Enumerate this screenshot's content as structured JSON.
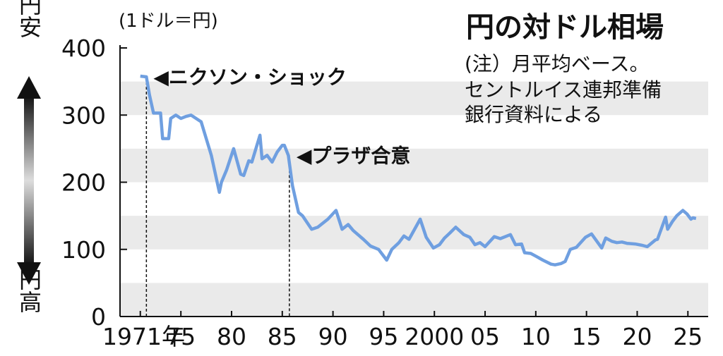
{
  "chart_data": {
    "type": "line",
    "title": "円の対ドル相場",
    "unit_label": "(1ドル＝円)",
    "notes": [
      "(注）月平均ベース。",
      "セントルイス連邦準備",
      "銀行資料による"
    ],
    "y_label_top": "円安",
    "y_label_bottom": "円高",
    "color": "#6f9fe0",
    "xlim": [
      1969,
      2027
    ],
    "ylim": [
      0,
      400
    ],
    "yticks": [
      0,
      100,
      200,
      300,
      400
    ],
    "xticks": [
      {
        "value": 1971,
        "label": "1971年"
      },
      {
        "value": 1975,
        "label": "75"
      },
      {
        "value": 1980,
        "label": "80"
      },
      {
        "value": 1985,
        "label": "85"
      },
      {
        "value": 1990,
        "label": "90"
      },
      {
        "value": 1995,
        "label": "95"
      },
      2000,
      {
        "value": 2005,
        "label": "05"
      },
      {
        "value": 2010,
        "label": "10"
      },
      {
        "value": 2015,
        "label": "15"
      },
      {
        "value": 2020,
        "label": "20"
      },
      {
        "value": 2025,
        "label": "25"
      }
    ],
    "annotations": [
      {
        "text": "◀ニクソン・ショック",
        "x": 1971.6,
        "y": 357
      },
      {
        "text": "◀プラザ合意",
        "x": 1985.7,
        "y": 240
      }
    ],
    "series": [
      {
        "name": "円の対ドル相場",
        "color": "#6f9fe0",
        "x": [
          1971.0,
          1971.6,
          1971.9,
          1972.3,
          1973.0,
          1973.2,
          1973.8,
          1974.0,
          1974.5,
          1975.0,
          1975.5,
          1976.0,
          1976.5,
          1977.0,
          1977.5,
          1978.0,
          1978.8,
          1979.0,
          1979.5,
          1980.2,
          1980.9,
          1981.2,
          1981.7,
          1982.0,
          1982.8,
          1983.0,
          1983.5,
          1984.0,
          1984.5,
          1985.0,
          1985.2,
          1985.6,
          1986.0,
          1986.6,
          1987.0,
          1987.9,
          1988.5,
          1989.5,
          1990.3,
          1990.9,
          1991.5,
          1992.0,
          1993.0,
          1993.7,
          1994.5,
          1995.3,
          1995.8,
          1996.5,
          1997.0,
          1997.5,
          1998.6,
          1999.2,
          1999.9,
          2000.5,
          2001.0,
          2001.5,
          2002.1,
          2002.9,
          2003.5,
          2004.0,
          2004.5,
          2005.0,
          2005.9,
          2006.5,
          2007.5,
          2008.0,
          2008.6,
          2008.9,
          2009.5,
          2010.0,
          2010.7,
          2011.5,
          2011.9,
          2012.5,
          2012.9,
          2013.4,
          2014.0,
          2014.9,
          2015.5,
          2016.5,
          2016.9,
          2017.5,
          2018.0,
          2018.5,
          2019.0,
          2019.8,
          2020.5,
          2021.0,
          2021.8,
          2022.0,
          2022.8,
          2023.0,
          2023.5,
          2023.9,
          2024.5,
          2024.9,
          2025.3,
          2025.5,
          2025.8
        ],
        "values": [
          358,
          357,
          330,
          303,
          303,
          265,
          265,
          295,
          300,
          295,
          298,
          300,
          295,
          290,
          265,
          240,
          185,
          200,
          218,
          250,
          212,
          210,
          232,
          230,
          270,
          235,
          240,
          230,
          245,
          255,
          255,
          240,
          195,
          155,
          150,
          130,
          133,
          145,
          158,
          130,
          137,
          128,
          115,
          105,
          100,
          84,
          100,
          110,
          120,
          115,
          145,
          118,
          102,
          107,
          117,
          124,
          133,
          122,
          118,
          107,
          110,
          104,
          119,
          116,
          122,
          107,
          108,
          95,
          94,
          90,
          84,
          78,
          77,
          79,
          82,
          100,
          103,
          118,
          123,
          102,
          117,
          112,
          110,
          111,
          109,
          108,
          106,
          104,
          114,
          115,
          148,
          130,
          142,
          150,
          158,
          153,
          145,
          147,
          146
        ]
      }
    ]
  }
}
